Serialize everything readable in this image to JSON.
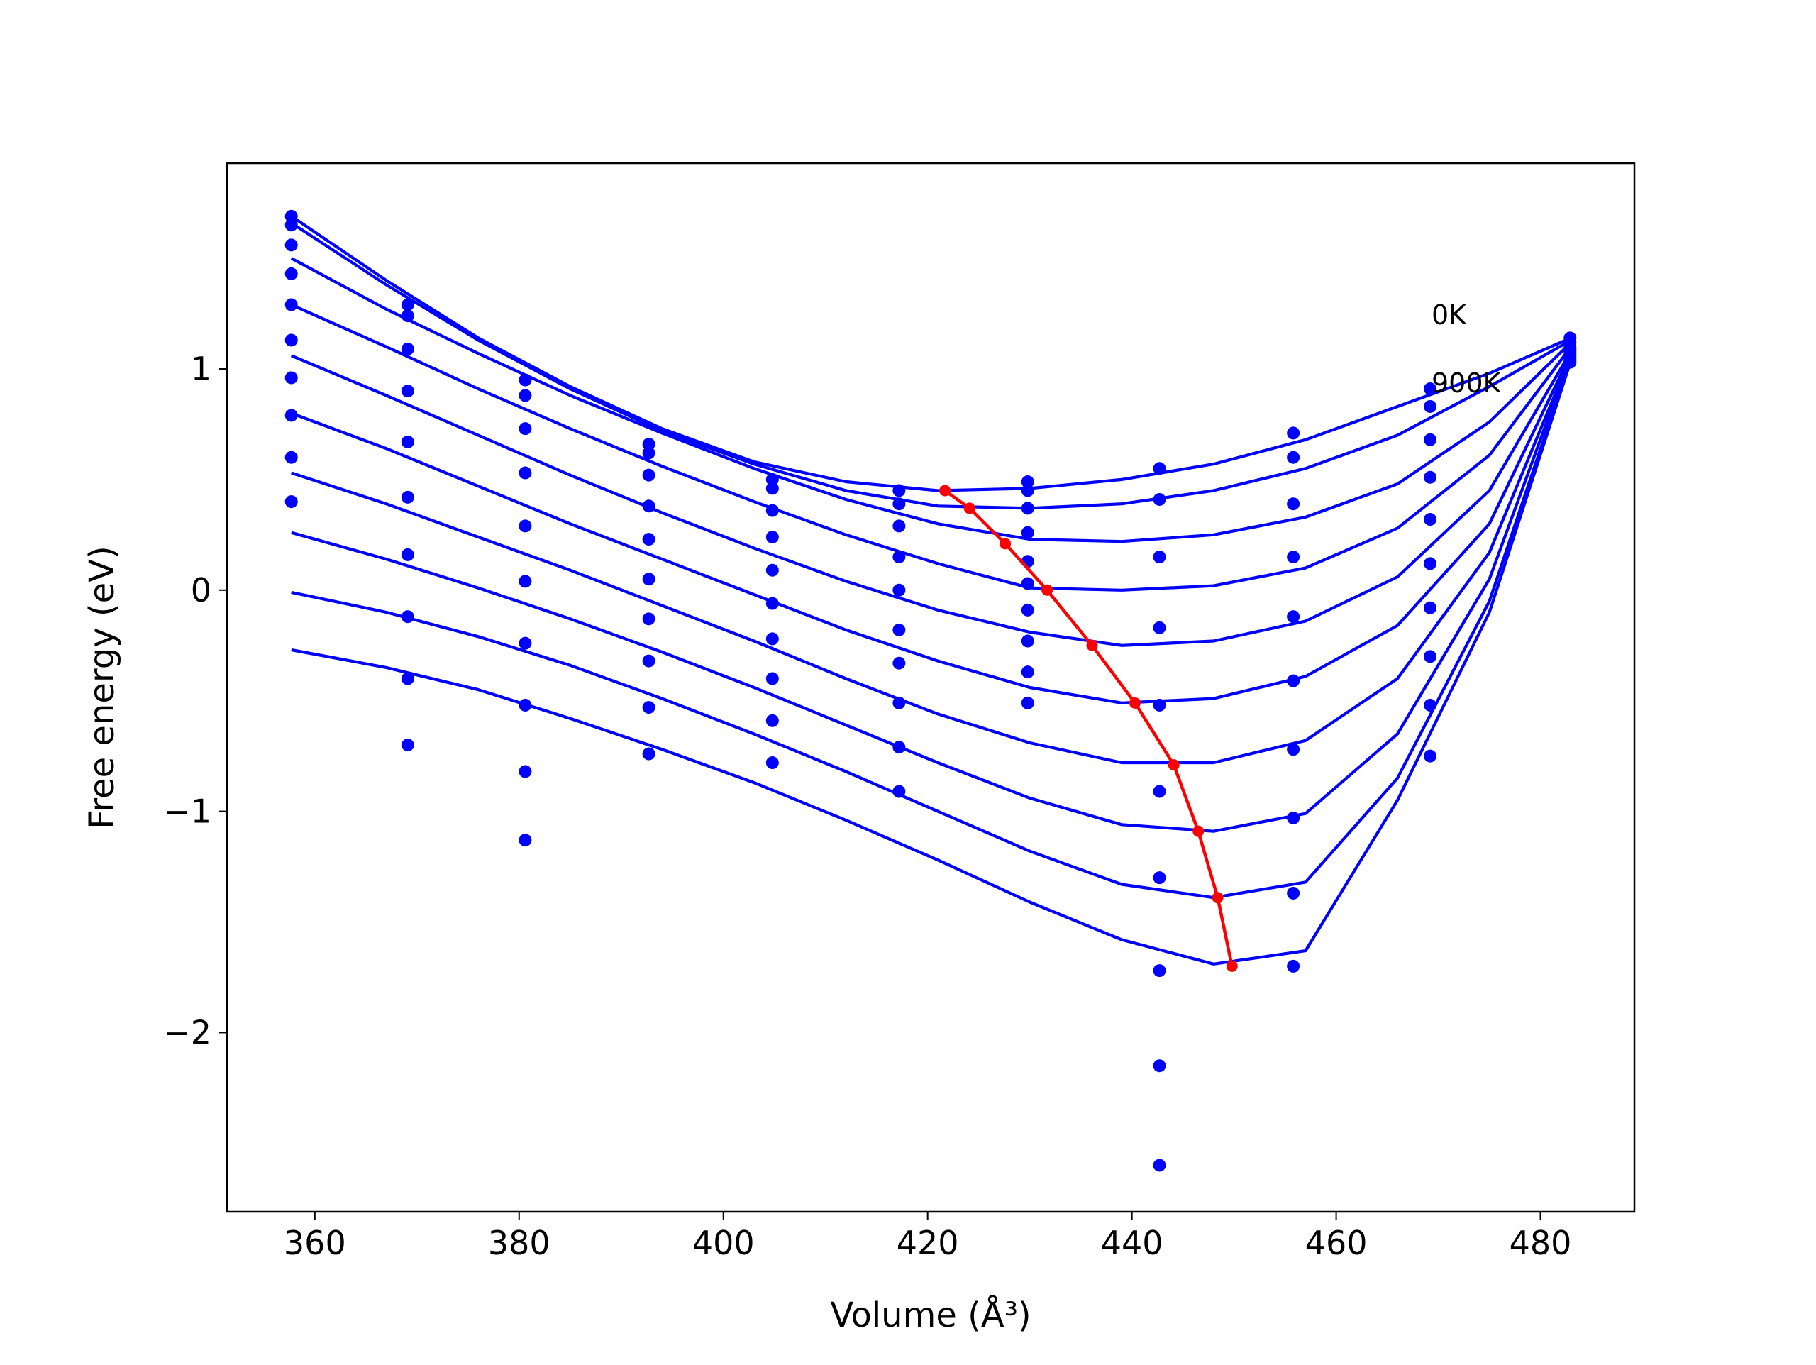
{
  "chart_data": {
    "type": "line",
    "xlabel": "Volume (Å³)",
    "ylabel": "Free energy (eV)",
    "xlim": [
      351.4,
      489.2
    ],
    "ylim": [
      -2.81,
      1.93
    ],
    "xticks": [
      360,
      380,
      400,
      420,
      440,
      460,
      480
    ],
    "yticks": [
      {
        "value": -2,
        "label": "−2"
      },
      {
        "value": -1,
        "label": "−1"
      },
      0,
      1
    ],
    "annotations": [
      "0K",
      "900K"
    ],
    "curves": {
      "color": "#0000ff",
      "x": [
        357.7,
        367,
        376,
        385,
        394,
        403,
        412,
        421,
        430,
        439,
        448,
        457,
        466,
        475,
        483
      ],
      "series": [
        {
          "values": [
            1.69,
            1.4,
            1.14,
            0.92,
            0.73,
            0.58,
            0.49,
            0.45,
            0.46,
            0.5,
            0.57,
            0.68,
            0.83,
            0.98,
            1.14
          ]
        },
        {
          "values": [
            1.66,
            1.38,
            1.13,
            0.91,
            0.72,
            0.57,
            0.45,
            0.38,
            0.37,
            0.39,
            0.45,
            0.55,
            0.7,
            0.92,
            1.13
          ]
        },
        {
          "values": [
            1.5,
            1.27,
            1.07,
            0.88,
            0.71,
            0.55,
            0.41,
            0.3,
            0.23,
            0.22,
            0.25,
            0.33,
            0.48,
            0.76,
            1.12
          ]
        },
        {
          "values": [
            1.29,
            1.1,
            0.91,
            0.73,
            0.56,
            0.4,
            0.25,
            0.12,
            0.01,
            0.0,
            0.02,
            0.1,
            0.28,
            0.61,
            1.1
          ]
        },
        {
          "values": [
            1.06,
            0.88,
            0.7,
            0.52,
            0.35,
            0.19,
            0.04,
            -0.09,
            -0.19,
            -0.25,
            -0.23,
            -0.14,
            0.06,
            0.45,
            1.08
          ]
        },
        {
          "values": [
            0.8,
            0.64,
            0.47,
            0.3,
            0.14,
            -0.02,
            -0.18,
            -0.32,
            -0.44,
            -0.51,
            -0.49,
            -0.39,
            -0.16,
            0.3,
            1.07
          ]
        },
        {
          "values": [
            0.53,
            0.39,
            0.24,
            0.09,
            -0.07,
            -0.23,
            -0.4,
            -0.56,
            -0.69,
            -0.78,
            -0.78,
            -0.68,
            -0.4,
            0.17,
            1.06
          ]
        },
        {
          "values": [
            0.26,
            0.14,
            0.01,
            -0.13,
            -0.28,
            -0.44,
            -0.61,
            -0.78,
            -0.94,
            -1.06,
            -1.09,
            -1.01,
            -0.65,
            0.05,
            1.06
          ]
        },
        {
          "values": [
            -0.01,
            -0.1,
            -0.21,
            -0.34,
            -0.49,
            -0.65,
            -0.82,
            -1.0,
            -1.18,
            -1.33,
            -1.39,
            -1.32,
            -0.85,
            -0.05,
            1.05
          ]
        },
        {
          "values": [
            -0.27,
            -0.35,
            -0.45,
            -0.58,
            -0.72,
            -0.87,
            -1.04,
            -1.22,
            -1.41,
            -1.58,
            -1.69,
            -1.63,
            -0.95,
            -0.1,
            1.04
          ]
        }
      ]
    },
    "points": {
      "color": "#0000ff",
      "x": [
        357.7,
        369.1,
        380.6,
        392.7,
        404.8,
        417.2,
        429.8,
        442.7,
        455.8,
        469.2,
        482.9
      ],
      "series": [
        {
          "values": [
            1.69,
            1.29,
            0.95,
            0.66,
            0.5,
            0.45,
            0.49,
            0.55,
            0.71,
            0.91,
            1.14
          ]
        },
        {
          "values": [
            1.65,
            1.24,
            0.88,
            0.62,
            0.46,
            0.39,
            0.45,
            0.41,
            0.6,
            0.83,
            1.12
          ]
        },
        {
          "values": [
            1.56,
            1.09,
            0.73,
            0.52,
            0.36,
            0.29,
            0.37,
            0.15,
            0.39,
            0.68,
            1.1
          ]
        },
        {
          "values": [
            1.43,
            0.9,
            0.53,
            0.38,
            0.24,
            0.15,
            0.26,
            -0.17,
            0.15,
            0.51,
            1.09
          ]
        },
        {
          "values": [
            1.29,
            0.67,
            0.29,
            0.23,
            0.09,
            0.0,
            0.13,
            -0.52,
            -0.12,
            0.32,
            1.08
          ]
        },
        {
          "values": [
            1.13,
            0.42,
            0.04,
            0.05,
            -0.06,
            -0.18,
            0.03,
            -0.91,
            -0.41,
            0.12,
            1.07
          ]
        },
        {
          "values": [
            0.96,
            0.16,
            -0.24,
            -0.13,
            -0.22,
            -0.33,
            -0.09,
            -1.3,
            -0.72,
            -0.08,
            1.06
          ]
        },
        {
          "values": [
            0.79,
            -0.12,
            -0.52,
            -0.32,
            -0.4,
            -0.51,
            -0.23,
            -1.72,
            -1.03,
            -0.3,
            1.05
          ]
        },
        {
          "values": [
            0.6,
            -0.4,
            -0.82,
            -0.53,
            -0.59,
            -0.71,
            -0.37,
            -2.15,
            -1.37,
            -0.52,
            1.04
          ]
        },
        {
          "values": [
            0.4,
            -0.7,
            -1.13,
            -0.74,
            -0.78,
            -0.91,
            -0.51,
            -2.6,
            -1.7,
            -0.75,
            1.03
          ]
        }
      ]
    },
    "minima": {
      "color": "#ff0000",
      "x": [
        421.7,
        424.1,
        427.6,
        431.7,
        436.1,
        440.3,
        444.1,
        446.5,
        448.4,
        449.8
      ],
      "values": [
        0.45,
        0.37,
        0.21,
        0.0,
        -0.25,
        -0.51,
        -0.79,
        -1.09,
        -1.39,
        -1.7
      ]
    }
  }
}
